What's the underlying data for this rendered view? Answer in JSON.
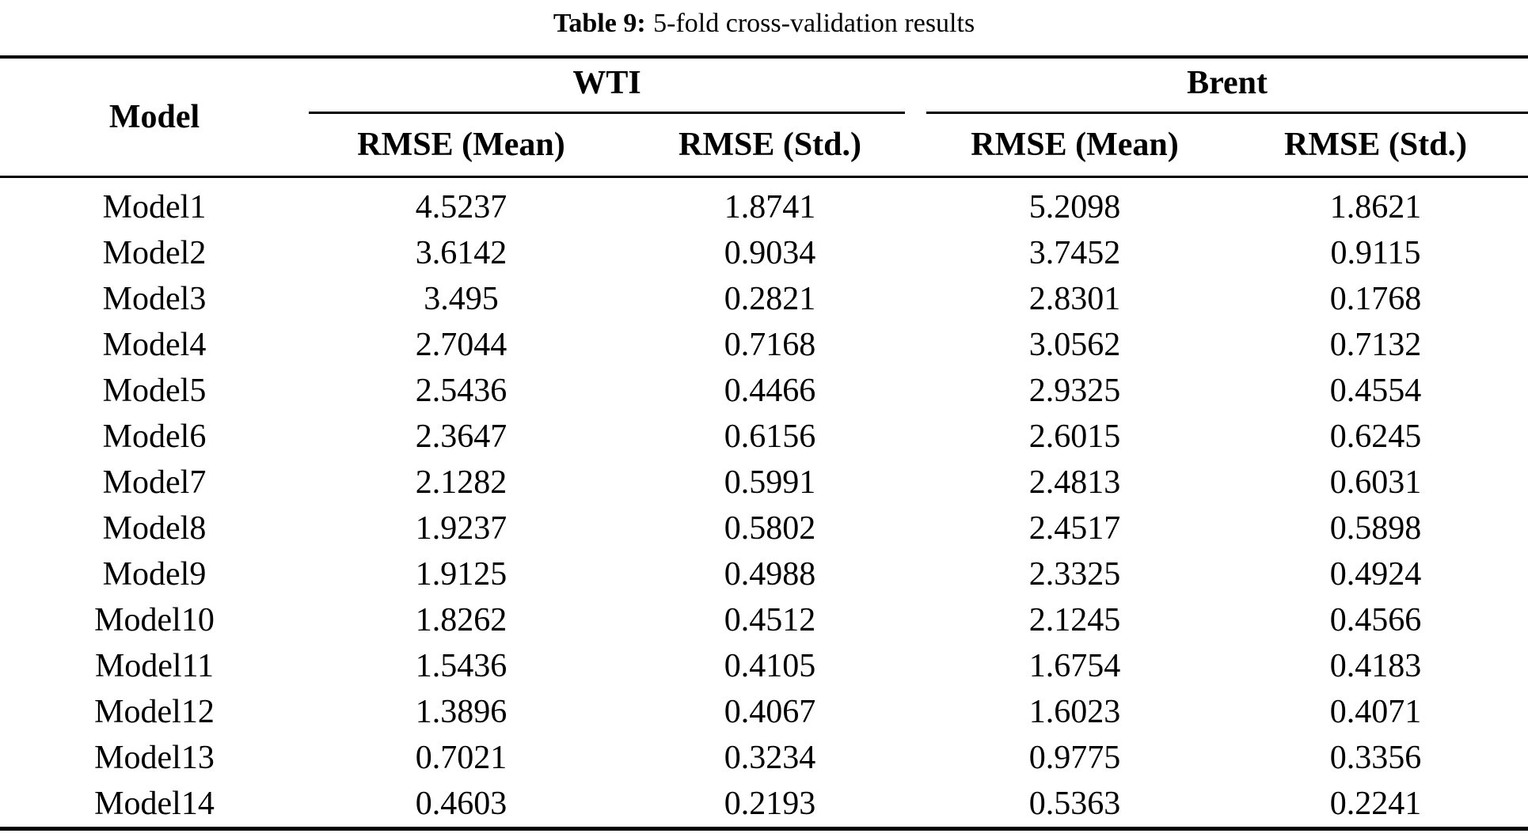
{
  "caption": {
    "label": "Table 9:",
    "text": "5-fold cross-validation results"
  },
  "table": {
    "model_header": "Model",
    "groups": [
      {
        "label": "WTI",
        "subcolumns": [
          "RMSE (Mean)",
          "RMSE (Std.)"
        ]
      },
      {
        "label": "Brent",
        "subcolumns": [
          "RMSE (Mean)",
          "RMSE (Std.)"
        ]
      }
    ],
    "rows": [
      [
        "Model1",
        "4.5237",
        "1.8741",
        "5.2098",
        "1.8621"
      ],
      [
        "Model2",
        "3.6142",
        "0.9034",
        "3.7452",
        "0.9115"
      ],
      [
        "Model3",
        "3.495",
        "0.2821",
        "2.8301",
        "0.1768"
      ],
      [
        "Model4",
        "2.7044",
        "0.7168",
        "3.0562",
        "0.7132"
      ],
      [
        "Model5",
        "2.5436",
        "0.4466",
        "2.9325",
        "0.4554"
      ],
      [
        "Model6",
        "2.3647",
        "0.6156",
        "2.6015",
        "0.6245"
      ],
      [
        "Model7",
        "2.1282",
        "0.5991",
        "2.4813",
        "0.6031"
      ],
      [
        "Model8",
        "1.9237",
        "0.5802",
        "2.4517",
        "0.5898"
      ],
      [
        "Model9",
        "1.9125",
        "0.4988",
        "2.3325",
        "0.4924"
      ],
      [
        "Model10",
        "1.8262",
        "0.4512",
        "2.1245",
        "0.4566"
      ],
      [
        "Model11",
        "1.5436",
        "0.4105",
        "1.6754",
        "0.4183"
      ],
      [
        "Model12",
        "1.3896",
        "0.4067",
        "1.6023",
        "0.4071"
      ],
      [
        "Model13",
        "0.7021",
        "0.3234",
        "0.9775",
        "0.3356"
      ],
      [
        "Model14",
        "0.4603",
        "0.2193",
        "0.5363",
        "0.2241"
      ]
    ]
  },
  "colors": {
    "text": "#000000",
    "background": "#ffffff",
    "rule": "#000000"
  }
}
